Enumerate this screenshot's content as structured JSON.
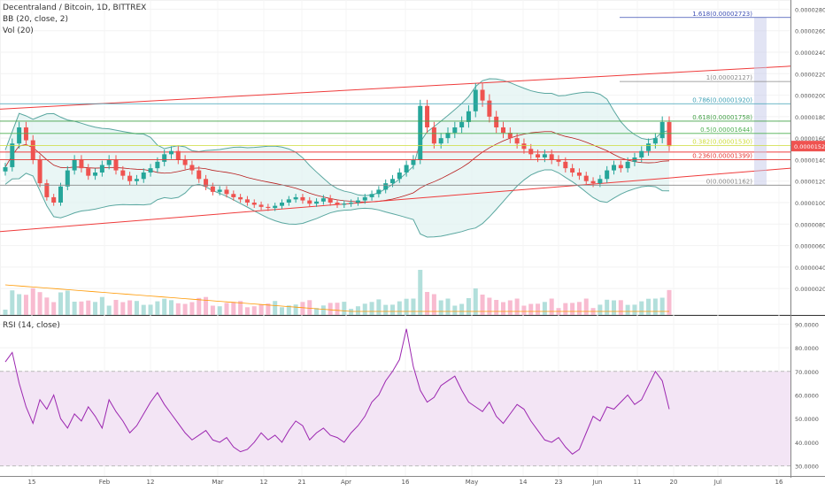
{
  "header": {
    "symbol_title": "Decentraland / Bitcoin, 1D, BITTREX",
    "bb_label": "BB (20, close, 2)",
    "vol_label": "Vol (20)",
    "rsi_label": "RSI (14, close)"
  },
  "colors": {
    "up": "#26a69a",
    "down": "#ef5350",
    "up_vol": "#b2dfdb",
    "down_vol": "#f8bbd0",
    "bb_band": "#5aa7a0",
    "bb_mid": "#b71c1c",
    "bb_fill": "#e0f2f1",
    "trend": "#ef3b3b",
    "rsi_line": "#9c27b0",
    "rsi_fill": "#f3e5f5",
    "vol_ma": "#ff9800",
    "price_tag": "#ef5350"
  },
  "chart_data": [
    {
      "type": "candlestick",
      "x_axis_ticks": [
        "15",
        "Feb",
        "12",
        "Mar",
        "12",
        "21",
        "Apr",
        "16",
        "May",
        "14",
        "23",
        "Jun",
        "11",
        "20",
        "Jul",
        "16"
      ],
      "y_axis_ticks": [
        "0.00002800",
        "0.00002600",
        "0.00002400",
        "0.00002200",
        "0.00002000",
        "0.00001800",
        "0.00001600",
        "0.00001400",
        "0.00001200",
        "0.00001000",
        "0.00000800",
        "0.00000600",
        "0.00000400",
        "0.00000200"
      ],
      "ylim": [
        2e-07,
        2.82e-05
      ],
      "last_price_label": "0.00001526",
      "last_price": 1.526e-05,
      "fib_levels": [
        {
          "label": "1.618(0.00002723)",
          "value": 2.723e-05,
          "color": "#3f51b5"
        },
        {
          "label": "1(0.00002127)",
          "value": 2.127e-05,
          "color": "#888888"
        },
        {
          "label": "0.786(0.00001920)",
          "value": 1.92e-05,
          "color": "#3da0b5"
        },
        {
          "label": "0.618(0.00001758)",
          "value": 1.758e-05,
          "color": "#43a047"
        },
        {
          "label": "0.5(0.00001644)",
          "value": 1.644e-05,
          "color": "#4caf50"
        },
        {
          "label": "0.382(0.00001530)",
          "value": 1.53e-05,
          "color": "#cddc39"
        },
        {
          "label": "0.236(0.00001399)",
          "value": 1.399e-05,
          "color": "#e53935"
        },
        {
          "label": "0(0.00001162)",
          "value": 1.162e-05,
          "color": "#888888"
        }
      ],
      "closes": [
        1.33,
        1.55,
        1.7,
        1.58,
        1.4,
        1.18,
        1.05,
        1.0,
        1.15,
        1.3,
        1.4,
        1.32,
        1.25,
        1.28,
        1.35,
        1.4,
        1.3,
        1.25,
        1.2,
        1.22,
        1.28,
        1.32,
        1.38,
        1.45,
        1.48,
        1.4,
        1.35,
        1.3,
        1.22,
        1.15,
        1.1,
        1.12,
        1.08,
        1.05,
        1.03,
        1.0,
        0.98,
        0.96,
        0.95,
        0.97,
        1.0,
        1.03,
        1.05,
        1.02,
        0.99,
        1.01,
        1.04,
        1.0,
        0.98,
        0.99,
        1.0,
        1.02,
        1.05,
        1.08,
        1.12,
        1.18,
        1.22,
        1.28,
        1.35,
        1.4,
        1.9,
        1.7,
        1.55,
        1.6,
        1.65,
        1.7,
        1.75,
        1.85,
        2.05,
        1.95,
        1.8,
        1.7,
        1.65,
        1.6,
        1.55,
        1.5,
        1.45,
        1.42,
        1.45,
        1.4,
        1.38,
        1.32,
        1.28,
        1.25,
        1.2,
        1.18,
        1.22,
        1.3,
        1.35,
        1.32,
        1.38,
        1.42,
        1.48,
        1.55,
        1.6,
        1.75,
        1.526
      ],
      "vol_ma_note": "",
      "annotations": []
    },
    {
      "type": "line",
      "name": "RSI",
      "y_axis_ticks": [
        "90.0000",
        "80.0000",
        "70.0000",
        "60.0000",
        "50.0000",
        "40.0000",
        "30.0000"
      ],
      "ylim": [
        28,
        92
      ],
      "band": [
        30,
        70
      ],
      "values": [
        74,
        78,
        65,
        55,
        48,
        58,
        54,
        60,
        50,
        46,
        52,
        49,
        55,
        51,
        46,
        58,
        53,
        49,
        44,
        47,
        52,
        57,
        61,
        56,
        52,
        48,
        44,
        41,
        43,
        45,
        41,
        40,
        42,
        38,
        36,
        37,
        40,
        44,
        41,
        43,
        40,
        45,
        49,
        47,
        41,
        44,
        46,
        43,
        42,
        40,
        44,
        47,
        51,
        57,
        60,
        66,
        70,
        75,
        88,
        72,
        62,
        57,
        59,
        64,
        66,
        68,
        62,
        57,
        55,
        53,
        57,
        51,
        48,
        52,
        56,
        54,
        49,
        45,
        41,
        40,
        42,
        38,
        35,
        37,
        44,
        51,
        49,
        55,
        54,
        57,
        60,
        56,
        58,
        64,
        70,
        66,
        54
      ]
    }
  ]
}
